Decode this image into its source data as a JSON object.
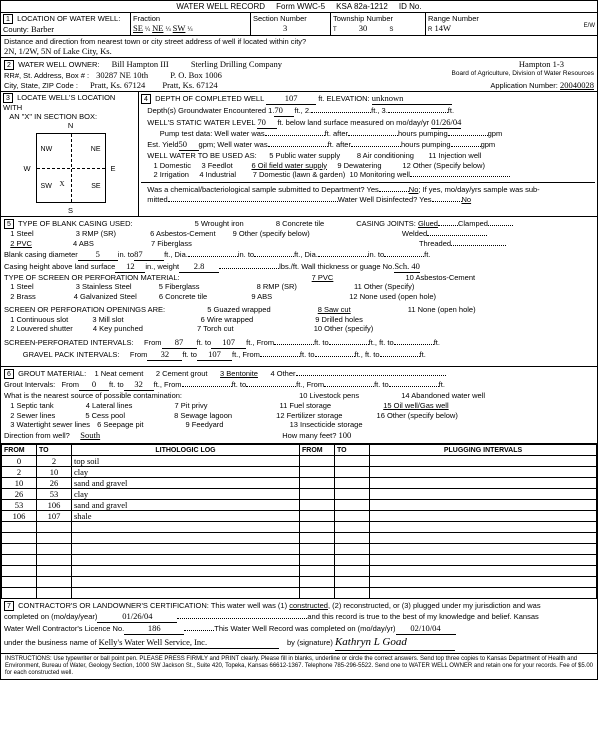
{
  "header": {
    "title": "WATER WELL RECORD",
    "form": "Form WWC-5",
    "ksa": "KSA 82a-1212",
    "idno": "ID No."
  },
  "sec1": {
    "label": "LOCATION OF WATER WELL:",
    "county_lbl": "County:",
    "county": "Barber",
    "fraction_lbl": "Fraction",
    "frac_a": "SE",
    "frac_b": "NE",
    "frac_c": "SW",
    "section_lbl": "Section Number",
    "section": "3",
    "township_lbl": "Township Number",
    "township": "30",
    "t_s": "S",
    "range_lbl": "Range Number",
    "range": "14W",
    "ew": "E/W",
    "dist_lbl": "Distance and direction from nearest town or city street address of well if located within city?",
    "dist": "2N, 1/2W, 5N of Lake City, Ks."
  },
  "sec2": {
    "label": "WATER WELL OWNER:",
    "owner": "Bill Hampton III",
    "company": "Sterling Drilling Company",
    "well": "Hampton 1-3",
    "rr_lbl": "RR#, St. Address, Box # :",
    "rr": "30287 NE 10th",
    "po": "P. O. Box 1006",
    "city_lbl": "City, State, ZIP Code :",
    "city1": "Pratt, Ks. 67124",
    "city2": "Pratt, Ks. 67124",
    "board": "Board of Agriculture, Division of Water Resources",
    "appno_lbl": "Application Number:",
    "appno": "20040028"
  },
  "sec3": {
    "label": "LOCATE WELL'S LOCATION WITH",
    "label2": "AN \"X\" IN SECTION BOX:",
    "n": "N",
    "s": "S",
    "e": "E",
    "w": "W",
    "nw": "NW",
    "ne": "NE",
    "sw": "SW",
    "se": "SE"
  },
  "sec4": {
    "label": "DEPTH OF COMPLETED WELL",
    "depth": "107",
    "ft": "ft.",
    "elev_lbl": "ELEVATION:",
    "elev": "unknown",
    "l1": "Depth(s) Groundwater Encountered    1.",
    "v1": "70",
    "l1b": "ft., 2.",
    "l1c": "ft., 3.",
    "l1d": "ft.",
    "l2": "WELL'S STATIC WATER LEVEL",
    "v2": "70",
    "l2b": "ft. below land surface measured on mo/day/yr",
    "v2d": "01/26/04",
    "l3": "Pump test data:  Well water was",
    "l3b": "ft. after",
    "l3c": "hours pumping",
    "l3d": "gpm",
    "l4": "Est. Yield",
    "v4": "50",
    "l4b": "gpm;  Well water was",
    "l4c": "ft. after",
    "l4d": "hours pumping",
    "l4e": "gpm",
    "l5": "WELL WATER TO BE USED AS:",
    "o1": "1 Domestic",
    "o2": "2 Irrigation",
    "o3": "3 Feedlot",
    "o4": "4 Industrial",
    "o5": "5 Public water supply",
    "o6": "6 Oil field water supply",
    "o7": "7 Domestic (lawn & garden)",
    "o8": "8 Air conditioning",
    "o9": "9 Dewatering",
    "o10": "10 Monitoring well",
    "o11": "11 Injection well",
    "o12": "12 Other (Specify below)",
    "chem": "Was a chemical/bacteriological sample submitted to Department? Yes",
    "no": "No",
    "chem2": "; If yes, mo/day/yrs sample was sub-",
    "mitted": "mitted",
    "disinf": "Water Well Disinfected? Yes",
    "no2": "No"
  },
  "sec5": {
    "label": "TYPE OF BLANK CASING USED:",
    "c1": "1 Steel",
    "c2": "2 PVC",
    "c3": "3 RMP (SR)",
    "c4": "4 ABS",
    "c5": "5 Wrought iron",
    "c6": "6 Asbestos-Cement",
    "c7": "7 Fiberglass",
    "c8": "8 Concrete tile",
    "c9": "9 Other (specify below)",
    "cj": "CASING JOINTS:",
    "cj1": "Glued",
    "cj2": "Clamped",
    "cj3": "Welded",
    "cj4": "Threaded",
    "bcd": "Blank casing diameter",
    "bcdv": "5",
    "bcd2": "in. to",
    "bcd2v": "87",
    "bcd3": "ft., Dia.",
    "bcd4": "in. to",
    "bcd5": "ft., Dia.",
    "bcd6": "in. to",
    "bcd7": "ft.",
    "ch": "Casing height above land surface",
    "chv": "12",
    "ch2": "in., weight",
    "ch2v": "2.8",
    "ch3": "lbs./ft. Wall thickness or guage No.",
    "ch3v": "Sch. 40",
    "perf": "TYPE OF SCREEN OR PERFORATION MATERIAL:",
    "p1": "1 Steel",
    "p2": "2 Brass",
    "p3": "3 Stainless Steel",
    "p4": "4 Galvanized Steel",
    "p5": "5 Fiberglass",
    "p6": "6 Concrete tile",
    "p7": "7 PVC",
    "p8": "8 RMP (SR)",
    "p9": "9 ABS",
    "p10": "10 Asbestos-Cement",
    "p11": "11 Other (Specify)",
    "p12": "12 None used (open hole)",
    "spo": "SCREEN OR PERFORATION OPENINGS ARE:",
    "s1": "1 Continuous slot",
    "s2": "2 Louvered shutter",
    "s3": "3 Mill slot",
    "s4": "4 Key punched",
    "s5": "5 Guazed wrapped",
    "s6": "6 Wire wrapped",
    "s7": "7 Torch cut",
    "s8": "8 Saw cut",
    "s9": "9 Drilled holes",
    "s10": "10 Other (specify)",
    "s11": "11 None (open hole)",
    "spi": "SCREEN-PERFORATED INTERVALS:",
    "from": "From",
    "to": "ft. to",
    "ft2": "ft.,",
    "spi_f1": "87",
    "spi_t1": "107",
    "gpi": "GRAVEL PACK INTERVALS:",
    "gpi_f1": "32",
    "gpi_t1": "107"
  },
  "sec6": {
    "label": "GROUT MATERIAL:",
    "g1": "1 Neat cement",
    "g2": "2 Cement grout",
    "g3": "3 Bentonite",
    "g4": "4 Other",
    "gi": "Grout Intervals:",
    "from": "From",
    "gi_f": "0",
    "to": "ft. to",
    "gi_t": "32",
    "ft2": "ft., From",
    "ft3": "ft. to",
    "ft4": "ft., From",
    "ft5": "ft. to",
    "ft6": "ft.",
    "near": "What is the nearest source of possible contamination:",
    "n1": "1 Septic tank",
    "n2": "2 Sewer lines",
    "n3": "3 Watertight sewer lines",
    "n4": "4 Lateral lines",
    "n5": "5 Cess pool",
    "n6": "6 Seepage pit",
    "n7": "7 Pit privy",
    "n8": "8 Sewage lagoon",
    "n9": "9 Feedyard",
    "n10": "10 Livestock pens",
    "n11": "11 Fuel storage",
    "n12": "12 Fertilizer storage",
    "n13": "13 Insecticide storage",
    "n14": "14 Abandoned water well",
    "n15": "15 Oil well/Gas well",
    "n16": "16 Other (specify below)",
    "dir": "Direction from well?",
    "dirv": "South",
    "hmf": "How many feet?",
    "hmfv": "100",
    "cols": {
      "from": "FROM",
      "to": "TO",
      "litho": "LITHOLOGIC LOG",
      "plug": "PLUGGING INTERVALS"
    },
    "rows": [
      {
        "f": "0",
        "t": "2",
        "l": "top soil"
      },
      {
        "f": "2",
        "t": "10",
        "l": "clay"
      },
      {
        "f": "10",
        "t": "26",
        "l": "sand and gravel"
      },
      {
        "f": "26",
        "t": "53",
        "l": "clay"
      },
      {
        "f": "53",
        "t": "106",
        "l": "sand and gravel"
      },
      {
        "f": "106",
        "t": "107",
        "l": "shale"
      }
    ]
  },
  "sec7": {
    "label": "CONTRACTOR'S OR LANDOWNER'S CERTIFICATION: This water well was (1)",
    "constructed": "constructed",
    "l2": ", (2) reconstructed, or (3) plugged under my jurisdiction and was",
    "l3": "completed on (mo/day/year)",
    "date": "01/26/04",
    "l4": "and this record is true to the best of my knowledge and belief. Kansas",
    "l5": "Water Well Contractor's Licence No.",
    "lic": "186",
    "l6": "This Water Well Record was completed on (mo/day/yr)",
    "date2": "02/10/04",
    "l7": "under the business name of",
    "biz": "Kelly's Water Well Service, Inc.",
    "l8": "by (signature)",
    "sig": "Kathryn L Goad"
  },
  "instr": "INSTRUCTIONS: Use typewriter or ball point pen. PLEASE PRESS FIRMLY and PRINT clearly. Please fill in blanks, underline or circle the correct answers. Send top three copies to Kansas Department of Health and Environment, Bureau of Water, Geology Section, 1000 SW Jackson St., Suite 420, Topeka, Kansas 66612-1367. Telephone 785-296-5522. Send one to WATER WELL OWNER and retain one for your records. Fee of $5.00 for each constructed well."
}
